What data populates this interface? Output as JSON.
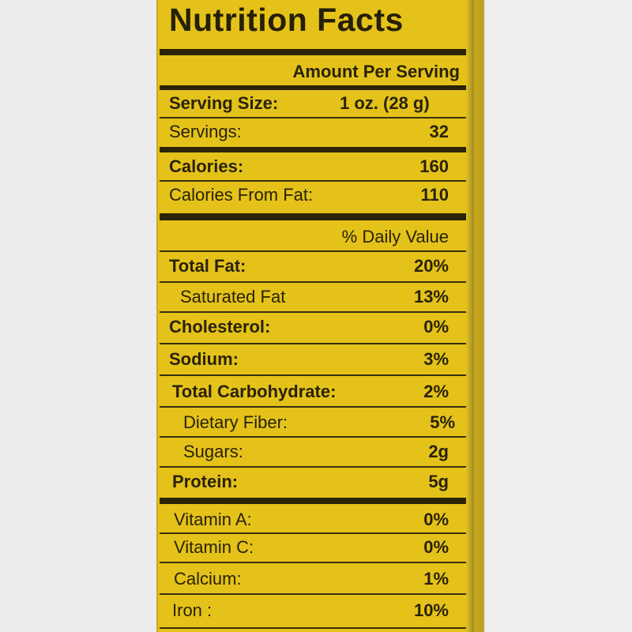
{
  "title": "Nutrition Facts",
  "amount_per_serving": "Amount Per Serving",
  "serving_size": {
    "label": "Serving Size:",
    "value": "1 oz. (28 g)"
  },
  "servings": {
    "label": "Servings:",
    "value": "32"
  },
  "calories": {
    "label": "Calories:",
    "value": "160"
  },
  "calories_from_fat": {
    "label": "Calories From Fat:",
    "value": "110"
  },
  "daily_value_header": "% Daily Value",
  "nutrients": [
    {
      "label": "Total Fat:",
      "value": "20%"
    },
    {
      "label": "Saturated Fat",
      "value": "13%"
    },
    {
      "label": "Cholesterol:",
      "value": "0%"
    },
    {
      "label": "Sodium:",
      "value": "3%"
    },
    {
      "label": "Total Carbohydrate:",
      "value": "2%"
    },
    {
      "label": "Dietary Fiber:",
      "value": "5%"
    },
    {
      "label": "Sugars:",
      "value": "2g"
    },
    {
      "label": "Protein:",
      "value": "5g"
    }
  ],
  "vitamins": [
    {
      "label": "Vitamin A:",
      "value": "0%"
    },
    {
      "label": "Vitamin C:",
      "value": "0%"
    },
    {
      "label": "Calcium:",
      "value": "1%"
    },
    {
      "label": "Iron :",
      "value": "10%"
    }
  ],
  "colors": {
    "label_background": "#e4c21a",
    "text": "#2a2208",
    "bars": "#2b2408"
  }
}
